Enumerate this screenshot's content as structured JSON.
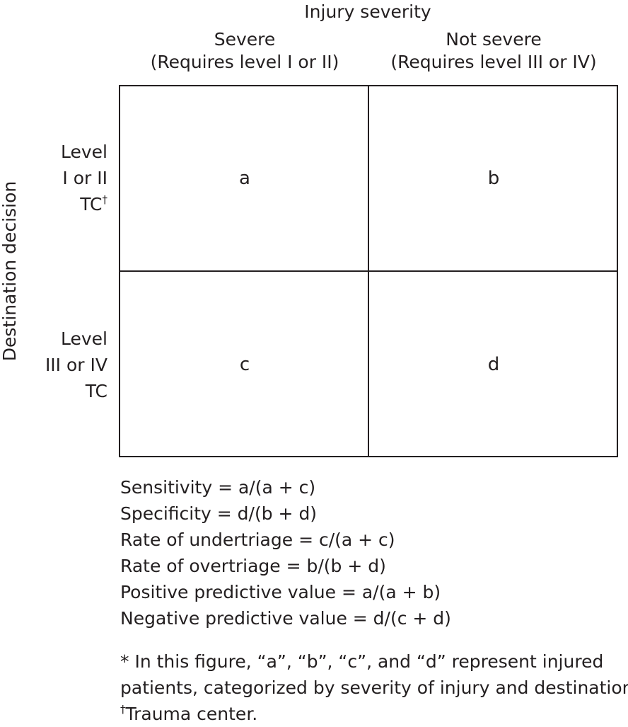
{
  "header": {
    "title": "Injury severity",
    "columns": [
      {
        "label": "Severe",
        "sublabel": "(Requires level I or II)"
      },
      {
        "label": "Not severe",
        "sublabel": "(Requires level III or IV)"
      }
    ]
  },
  "side_title": "Destination decision",
  "rows": [
    {
      "lines": [
        "Level",
        "I or II",
        "TC"
      ],
      "sup": "†"
    },
    {
      "lines": [
        "Level",
        "III or IV",
        "TC"
      ],
      "sup": ""
    }
  ],
  "cells": [
    "a",
    "b",
    "c",
    "d"
  ],
  "formulas": [
    "Sensitivity = a/(a + c)",
    "Specificity = d/(b + d)",
    "Rate of undertriage = c/(a + c)",
    "Rate of overtriage = b/(b + d)",
    "Positive predictive value = a/(a + b)",
    "Negative predictive value = d/(c + d)"
  ],
  "footnote": {
    "line1": "* In this figure, “a”, “b”, “c”, and “d” represent injured",
    "line2": "patients, categorized by severity of injury and destination.",
    "dagger": "†",
    "line3": "Trauma center."
  }
}
